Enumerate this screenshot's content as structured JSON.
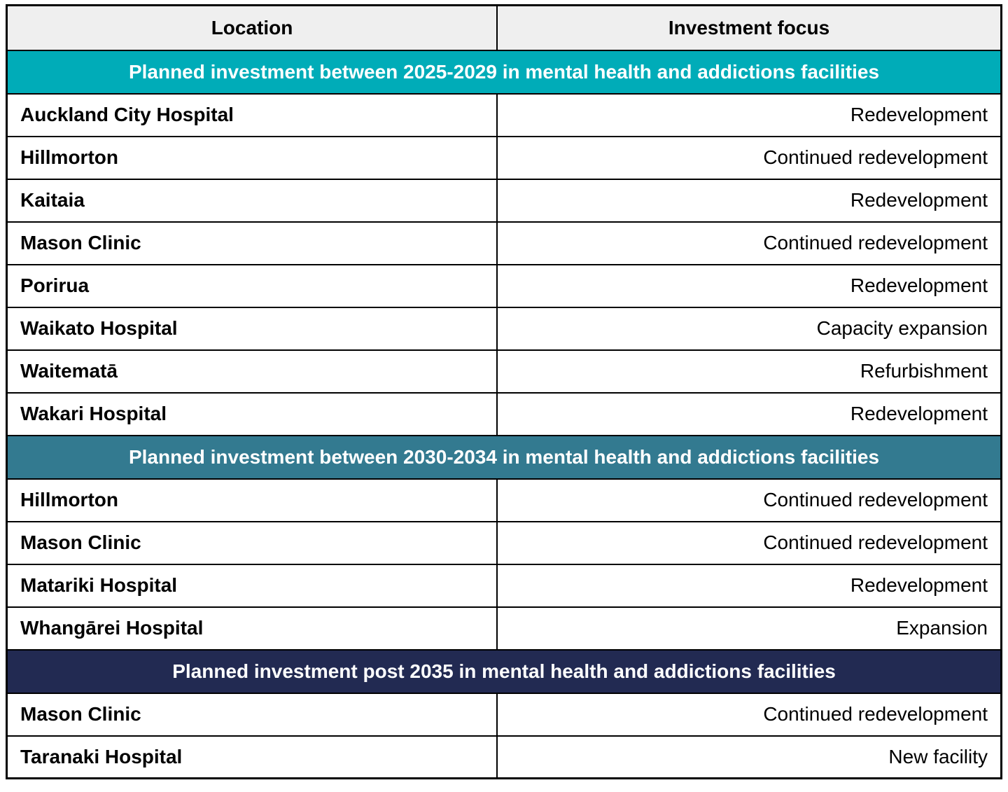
{
  "table": {
    "columns": [
      "Location",
      "Investment focus"
    ],
    "column_split": [
      "49.3%",
      "50.7%"
    ],
    "header_bg": "#efefef",
    "border_color": "#000000",
    "sections": [
      {
        "header": "Planned investment between 2025-2029 in mental health and addictions facilities",
        "color": "#00acb8",
        "rows": [
          {
            "location": "Auckland City Hospital",
            "focus": "Redevelopment"
          },
          {
            "location": "Hillmorton",
            "focus": "Continued redevelopment"
          },
          {
            "location": "Kaitaia",
            "focus": "Redevelopment"
          },
          {
            "location": "Mason Clinic",
            "focus": "Continued redevelopment"
          },
          {
            "location": "Porirua",
            "focus": "Redevelopment"
          },
          {
            "location": "Waikato Hospital",
            "focus": "Capacity expansion"
          },
          {
            "location": "Waitematā",
            "focus": "Refurbishment"
          },
          {
            "location": "Wakari Hospital",
            "focus": "Redevelopment"
          }
        ]
      },
      {
        "header": "Planned investment between 2030-2034 in mental health and addictions facilities",
        "color": "#337a90",
        "rows": [
          {
            "location": "Hillmorton",
            "focus": "Continued redevelopment"
          },
          {
            "location": "Mason Clinic",
            "focus": "Continued redevelopment"
          },
          {
            "location": "Matariki Hospital",
            "focus": "Redevelopment"
          },
          {
            "location": "Whangārei Hospital",
            "focus": "Expansion"
          }
        ]
      },
      {
        "header": "Planned investment post 2035 in mental health and addictions facilities",
        "color": "#222a52",
        "rows": [
          {
            "location": "Mason Clinic",
            "focus": "Continued redevelopment"
          },
          {
            "location": "Taranaki Hospital",
            "focus": "New facility"
          }
        ]
      }
    ]
  }
}
